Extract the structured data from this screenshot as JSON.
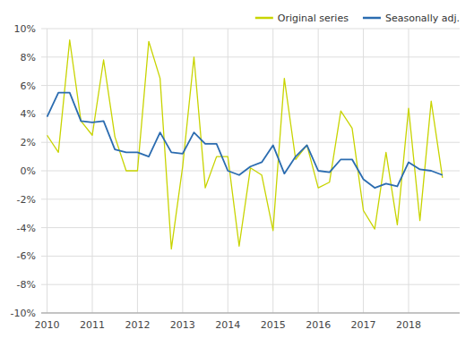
{
  "chart_data": {
    "type": "line",
    "x": [
      2010.0,
      2010.25,
      2010.5,
      2010.75,
      2011.0,
      2011.25,
      2011.5,
      2011.75,
      2012.0,
      2012.25,
      2012.5,
      2012.75,
      2013.0,
      2013.25,
      2013.5,
      2013.75,
      2014.0,
      2014.25,
      2014.5,
      2014.75,
      2015.0,
      2015.25,
      2015.5,
      2015.75,
      2016.0,
      2016.25,
      2016.5,
      2016.75,
      2017.0,
      2017.25,
      2017.5,
      2017.75,
      2018.0,
      2018.25,
      2018.5,
      2018.75
    ],
    "series": [
      {
        "name": "Original series",
        "color": "#c8d400",
        "values": [
          2.5,
          1.3,
          9.2,
          3.5,
          2.5,
          7.8,
          2.4,
          0.0,
          0.0,
          9.1,
          6.5,
          -5.5,
          0.3,
          8.0,
          -1.2,
          1.0,
          1.0,
          -5.3,
          0.2,
          -0.3,
          -4.2,
          6.5,
          0.8,
          1.8,
          -1.2,
          -0.8,
          4.2,
          3.0,
          -2.8,
          -4.1,
          1.3,
          -3.8,
          4.4,
          -3.5,
          4.9,
          -0.5
        ]
      },
      {
        "name": "Seasonally adj.",
        "color": "#2b6cb0",
        "values": [
          3.8,
          5.5,
          5.5,
          3.5,
          3.4,
          3.5,
          1.5,
          1.3,
          1.3,
          1.0,
          2.7,
          1.3,
          1.2,
          2.7,
          1.9,
          1.9,
          0.0,
          -0.3,
          0.3,
          0.6,
          1.8,
          -0.2,
          1.0,
          1.8,
          0.0,
          -0.1,
          0.8,
          0.8,
          -0.6,
          -1.2,
          -0.9,
          -1.1,
          0.6,
          0.1,
          0.0,
          -0.3
        ]
      }
    ],
    "xlim": [
      2009.87,
      2019.13
    ],
    "xticks": [
      2010,
      2011,
      2012,
      2013,
      2014,
      2015,
      2016,
      2017,
      2018
    ],
    "ylim": [
      -10,
      10
    ],
    "yticks": [
      {
        "value": -10,
        "label": "-10%"
      },
      {
        "value": -8,
        "label": "-8%"
      },
      {
        "value": -6,
        "label": "-6%"
      },
      {
        "value": -4,
        "label": "-4%"
      },
      {
        "value": -2,
        "label": "-2%"
      },
      {
        "value": 0,
        "label": "0%"
      },
      {
        "value": 2,
        "label": "2%"
      },
      {
        "value": 4,
        "label": "4%"
      },
      {
        "value": 6,
        "label": "6%"
      },
      {
        "value": 8,
        "label": "8%"
      },
      {
        "value": 10,
        "label": "10%"
      }
    ],
    "grid": true,
    "legend": "upper right"
  }
}
